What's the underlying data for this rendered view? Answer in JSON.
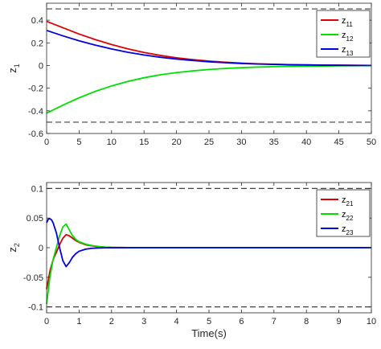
{
  "chart_data": [
    {
      "type": "line",
      "ylabel": "z",
      "ylabel_sub": "1",
      "xlabel": "",
      "xlim": [
        0,
        50
      ],
      "ylim": [
        -0.6,
        0.55
      ],
      "xticks": [
        0,
        5,
        10,
        15,
        20,
        25,
        30,
        35,
        40,
        45,
        50
      ],
      "yticks": [
        -0.6,
        -0.4,
        -0.2,
        0,
        0.2,
        0.4
      ],
      "ytick_labels": [
        "-0.6",
        "-0.4",
        "-0.2",
        "0",
        "0.2",
        "0.4"
      ],
      "grid": false,
      "legend": "top-right",
      "bounds": [
        0.5,
        -0.5
      ],
      "series": [
        {
          "name": "z",
          "sub": "11",
          "color": "#e00000",
          "x": [
            0,
            2.5,
            5,
            7.5,
            10,
            12.5,
            15,
            17.5,
            20,
            22.5,
            25,
            27.5,
            30,
            32.5,
            35,
            37.5,
            40,
            42.5,
            45,
            47.5,
            50
          ],
          "values": [
            0.39,
            0.334,
            0.278,
            0.229,
            0.185,
            0.147,
            0.115,
            0.089,
            0.068,
            0.052,
            0.039,
            0.029,
            0.021,
            0.015,
            0.011,
            0.008,
            0.006,
            0.004,
            0.003,
            0.002,
            0.001
          ]
        },
        {
          "name": "z",
          "sub": "12",
          "color": "#00e000",
          "x": [
            0,
            2.5,
            5,
            7.5,
            10,
            12.5,
            15,
            17.5,
            20,
            22.5,
            25,
            27.5,
            30,
            32.5,
            35,
            37.5,
            40,
            42.5,
            45,
            47.5,
            50
          ],
          "values": [
            -0.42,
            -0.35,
            -0.285,
            -0.228,
            -0.18,
            -0.14,
            -0.108,
            -0.082,
            -0.062,
            -0.047,
            -0.035,
            -0.026,
            -0.019,
            -0.014,
            -0.01,
            -0.007,
            -0.005,
            -0.004,
            -0.003,
            -0.002,
            -0.001
          ]
        },
        {
          "name": "z",
          "sub": "13",
          "color": "#0000e0",
          "x": [
            0,
            2.5,
            5,
            7.5,
            10,
            12.5,
            15,
            17.5,
            20,
            22.5,
            25,
            27.5,
            30,
            32.5,
            35,
            37.5,
            40,
            42.5,
            45,
            47.5,
            50
          ],
          "values": [
            0.31,
            0.262,
            0.218,
            0.18,
            0.146,
            0.117,
            0.093,
            0.073,
            0.057,
            0.044,
            0.033,
            0.025,
            0.018,
            0.013,
            0.01,
            0.007,
            0.005,
            0.003,
            0.002,
            0.001,
            0.001
          ]
        }
      ]
    },
    {
      "type": "line",
      "ylabel": "z",
      "ylabel_sub": "2",
      "xlabel": "Time(s)",
      "xlim": [
        0,
        10
      ],
      "ylim": [
        -0.11,
        0.11
      ],
      "xticks": [
        0,
        1,
        2,
        3,
        4,
        5,
        6,
        7,
        8,
        9,
        10
      ],
      "yticks": [
        -0.1,
        -0.05,
        0,
        0.05,
        0.1
      ],
      "ytick_labels": [
        "-0.1",
        "-0.05",
        "0",
        "0.05",
        "0.1"
      ],
      "grid": false,
      "legend": "top-right",
      "bounds": [
        0.1,
        -0.1
      ],
      "series": [
        {
          "name": "z",
          "sub": "21",
          "color": "#e00000",
          "x": [
            0,
            0.1,
            0.2,
            0.3,
            0.4,
            0.5,
            0.6,
            0.7,
            0.8,
            0.9,
            1.0,
            1.2,
            1.4,
            1.6,
            1.8,
            2.0,
            2.5,
            3.0,
            4.0,
            10.0
          ],
          "values": [
            -0.07,
            -0.04,
            -0.02,
            -0.008,
            0.005,
            0.016,
            0.022,
            0.02,
            0.016,
            0.012,
            0.009,
            0.005,
            0.003,
            0.0015,
            0.0008,
            0.0004,
            0.0001,
            0,
            0,
            0
          ]
        },
        {
          "name": "z",
          "sub": "22",
          "color": "#00e000",
          "x": [
            0,
            0.1,
            0.2,
            0.3,
            0.4,
            0.5,
            0.6,
            0.7,
            0.8,
            0.9,
            1.0,
            1.2,
            1.4,
            1.6,
            1.8,
            2.0,
            2.5,
            3.0,
            4.0,
            10.0
          ],
          "values": [
            -0.095,
            -0.05,
            -0.02,
            0.0,
            0.02,
            0.035,
            0.04,
            0.03,
            0.02,
            0.014,
            0.01,
            0.006,
            0.0035,
            0.002,
            0.001,
            0.0005,
            0.0001,
            0,
            0,
            0
          ]
        },
        {
          "name": "z",
          "sub": "23",
          "color": "#0000e0",
          "x": [
            0,
            0.05,
            0.1,
            0.15,
            0.2,
            0.3,
            0.4,
            0.5,
            0.6,
            0.7,
            0.8,
            0.9,
            1.0,
            1.2,
            1.4,
            1.6,
            1.8,
            2.0,
            2.5,
            3.0,
            4.0,
            10.0
          ],
          "values": [
            0.042,
            0.048,
            0.049,
            0.047,
            0.042,
            0.025,
            0.0,
            -0.022,
            -0.032,
            -0.025,
            -0.016,
            -0.01,
            -0.006,
            -0.0025,
            -0.001,
            -0.0004,
            -0.0002,
            -0.0001,
            0,
            0,
            0,
            0
          ]
        }
      ]
    }
  ]
}
